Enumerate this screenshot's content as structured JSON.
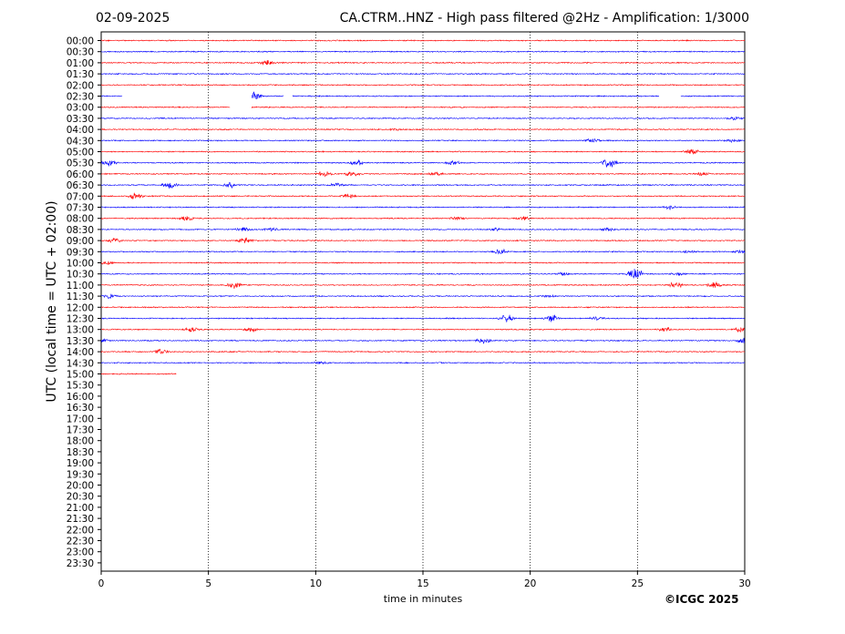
{
  "header": {
    "date": "02-09-2025",
    "title": "CA.CTRM..HNZ - High pass filtered @2Hz - Amplification: 1/3000"
  },
  "footer": {
    "copyright": "©ICGC 2025"
  },
  "colors": {
    "trace_a": "#ff0000",
    "trace_b": "#0000ff",
    "grid": "#000000"
  },
  "chart_data": {
    "type": "line",
    "title": "CA.CTRM..HNZ - High pass filtered @2Hz - Amplification: 1/3000",
    "xlabel": "time in minutes",
    "ylabel": "UTC (local time = UTC + 02:00)",
    "xlim": [
      0,
      30
    ],
    "x_ticks": [
      "0",
      "5",
      "10",
      "15",
      "20",
      "25",
      "30"
    ],
    "y_ticks": [
      "00:00",
      "00:30",
      "01:00",
      "01:30",
      "02:00",
      "02:30",
      "03:00",
      "03:30",
      "04:00",
      "04:30",
      "05:00",
      "05:30",
      "06:00",
      "06:30",
      "07:00",
      "07:30",
      "08:00",
      "08:30",
      "09:00",
      "09:30",
      "10:00",
      "10:30",
      "11:00",
      "11:30",
      "12:00",
      "12:30",
      "13:00",
      "13:30",
      "14:00",
      "14:30",
      "15:00",
      "15:30",
      "16:00",
      "16:30",
      "17:00",
      "17:30",
      "18:00",
      "18:30",
      "19:00",
      "19:30",
      "20:00",
      "20:30",
      "21:00",
      "21:30",
      "22:00",
      "22:30",
      "23:00",
      "23:30"
    ],
    "grid": "vertical dotted lines every 5 minutes",
    "series": [
      {
        "row": "00:00",
        "color": "red",
        "end_minute": 30,
        "events": []
      },
      {
        "row": "00:30",
        "color": "blue",
        "end_minute": 30,
        "events": []
      },
      {
        "row": "01:00",
        "color": "red",
        "end_minute": 30,
        "events": [
          [
            7.7,
            0.6
          ]
        ]
      },
      {
        "row": "01:30",
        "color": "blue",
        "end_minute": 30,
        "events": []
      },
      {
        "row": "02:00",
        "color": "red",
        "end_minute": 30,
        "events": []
      },
      {
        "row": "02:30",
        "color": "blue",
        "end_minute": 30,
        "gaps": [
          [
            1.0,
            7.0
          ],
          [
            8.5,
            8.9
          ],
          [
            26.0,
            27.0
          ]
        ],
        "events": [
          [
            7.1,
            0.9
          ]
        ]
      },
      {
        "row": "03:00",
        "color": "red",
        "end_minute": 30,
        "gaps": [
          [
            6.0,
            7.0
          ]
        ],
        "events": []
      },
      {
        "row": "03:30",
        "color": "blue",
        "end_minute": 30,
        "events": [
          [
            29.5,
            0.3
          ]
        ]
      },
      {
        "row": "04:00",
        "color": "red",
        "end_minute": 30,
        "events": [
          [
            13.8,
            0.2
          ]
        ]
      },
      {
        "row": "04:30",
        "color": "blue",
        "end_minute": 30,
        "events": [
          [
            22.9,
            0.4
          ],
          [
            29.4,
            0.3
          ]
        ]
      },
      {
        "row": "05:00",
        "color": "red",
        "end_minute": 30,
        "events": [
          [
            27.5,
            0.6
          ]
        ]
      },
      {
        "row": "05:30",
        "color": "blue",
        "end_minute": 30,
        "events": [
          [
            0.4,
            0.6
          ],
          [
            11.9,
            0.7
          ],
          [
            16.4,
            0.4
          ],
          [
            23.7,
            1.0
          ]
        ]
      },
      {
        "row": "06:00",
        "color": "red",
        "end_minute": 30,
        "events": [
          [
            10.4,
            0.6
          ],
          [
            11.7,
            0.5
          ],
          [
            15.6,
            0.4
          ],
          [
            28.0,
            0.3
          ]
        ]
      },
      {
        "row": "06:30",
        "color": "blue",
        "end_minute": 30,
        "events": [
          [
            3.2,
            0.6
          ],
          [
            6.0,
            0.6
          ],
          [
            11.0,
            0.4
          ]
        ]
      },
      {
        "row": "07:00",
        "color": "red",
        "end_minute": 30,
        "events": [
          [
            1.6,
            0.7
          ],
          [
            11.5,
            0.4
          ]
        ]
      },
      {
        "row": "07:30",
        "color": "blue",
        "end_minute": 30,
        "events": [
          [
            26.5,
            0.4
          ]
        ]
      },
      {
        "row": "08:00",
        "color": "red",
        "end_minute": 30,
        "events": [
          [
            4.0,
            0.5
          ],
          [
            16.6,
            0.3
          ],
          [
            19.7,
            0.4
          ]
        ]
      },
      {
        "row": "08:30",
        "color": "blue",
        "end_minute": 30,
        "events": [
          [
            6.6,
            0.5
          ],
          [
            7.9,
            0.4
          ],
          [
            18.4,
            0.3
          ],
          [
            23.6,
            0.3
          ]
        ]
      },
      {
        "row": "09:00",
        "color": "red",
        "end_minute": 30,
        "events": [
          [
            0.6,
            0.4
          ],
          [
            6.7,
            0.6
          ]
        ]
      },
      {
        "row": "09:30",
        "color": "blue",
        "end_minute": 30,
        "events": [
          [
            18.6,
            0.5
          ],
          [
            27.4,
            0.3
          ],
          [
            29.8,
            0.4
          ]
        ]
      },
      {
        "row": "10:00",
        "color": "red",
        "end_minute": 30,
        "events": [
          [
            0.3,
            0.3
          ]
        ]
      },
      {
        "row": "10:30",
        "color": "blue",
        "end_minute": 30,
        "events": [
          [
            21.5,
            0.3
          ],
          [
            24.9,
            1.4
          ],
          [
            26.9,
            0.3
          ]
        ]
      },
      {
        "row": "11:00",
        "color": "red",
        "end_minute": 30,
        "events": [
          [
            6.2,
            0.6
          ],
          [
            26.8,
            0.6
          ],
          [
            28.6,
            0.6
          ]
        ]
      },
      {
        "row": "11:30",
        "color": "blue",
        "end_minute": 30,
        "events": [
          [
            0.4,
            0.4
          ],
          [
            20.8,
            0.2
          ]
        ]
      },
      {
        "row": "12:00",
        "color": "red",
        "end_minute": 30,
        "events": []
      },
      {
        "row": "12:30",
        "color": "blue",
        "end_minute": 30,
        "events": [
          [
            18.9,
            0.8
          ],
          [
            21.0,
            0.8
          ],
          [
            23.1,
            0.4
          ]
        ]
      },
      {
        "row": "13:00",
        "color": "red",
        "end_minute": 30,
        "events": [
          [
            4.2,
            0.4
          ],
          [
            7.0,
            0.5
          ],
          [
            26.3,
            0.4
          ],
          [
            29.8,
            0.5
          ]
        ]
      },
      {
        "row": "13:30",
        "color": "blue",
        "end_minute": 30,
        "events": [
          [
            0.1,
            0.3
          ],
          [
            17.8,
            0.6
          ],
          [
            30.0,
            0.6
          ]
        ]
      },
      {
        "row": "14:00",
        "color": "red",
        "end_minute": 30,
        "events": [
          [
            2.8,
            0.5
          ]
        ]
      },
      {
        "row": "14:30",
        "color": "blue",
        "end_minute": 30,
        "events": [
          [
            10.2,
            0.3
          ]
        ]
      },
      {
        "row": "15:00",
        "color": "red",
        "end_minute": 3.5,
        "events": []
      }
    ]
  }
}
